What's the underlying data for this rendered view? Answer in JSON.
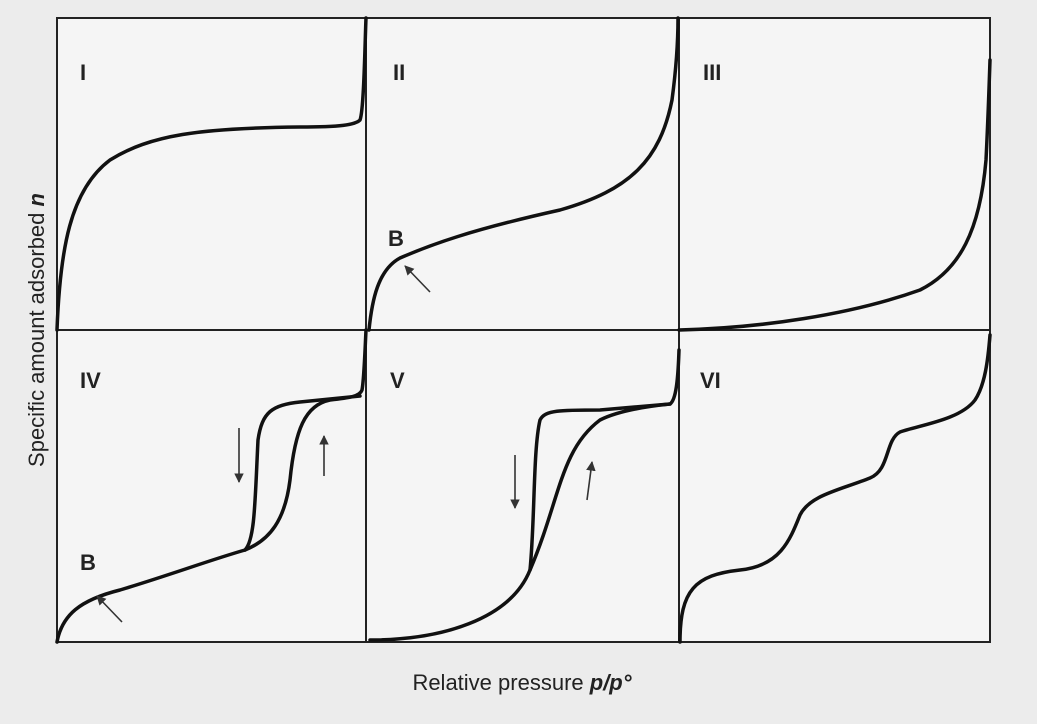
{
  "y_axis_label": {
    "text": "Specific amount adsorbed",
    "symbol": "n"
  },
  "x_axis_label": {
    "text": "Relative pressure",
    "symbol": "p/p°"
  },
  "panels": [
    {
      "label": "I"
    },
    {
      "label": "II",
      "point_label": "B"
    },
    {
      "label": "III"
    },
    {
      "label": "IV",
      "point_label": "B"
    },
    {
      "label": "V"
    },
    {
      "label": "VI"
    }
  ]
}
